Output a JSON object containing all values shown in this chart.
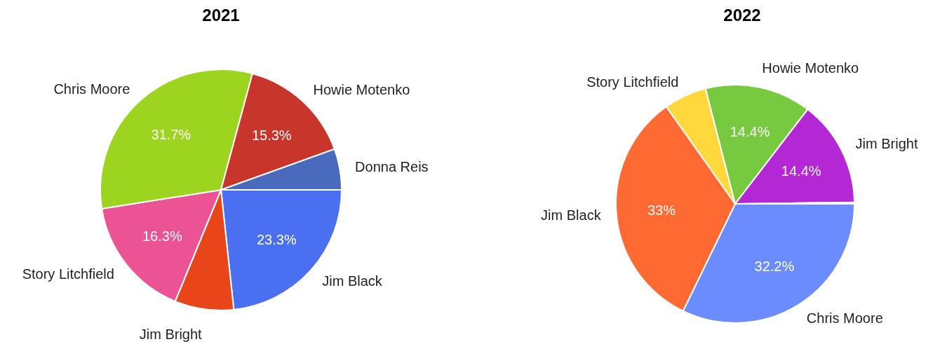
{
  "chart_data": [
    {
      "type": "pie",
      "title": "2021",
      "categories": [
        "Jim Black",
        "Jim Bright",
        "Story Litchfield",
        "Chris Moore",
        "Howie Motenko",
        "Donna Reis"
      ],
      "values": [
        23.3,
        7.9,
        16.3,
        31.7,
        15.3,
        5.5
      ],
      "colors": [
        "#4a6ff0",
        "#e8461a",
        "#ec5395",
        "#9dd41f",
        "#c8352b",
        "#4a6bbd"
      ],
      "value_labels": [
        "23.3%",
        null,
        "16.3%",
        "31.7%",
        "15.3%",
        null
      ]
    },
    {
      "type": "pie",
      "title": "2022",
      "categories": [
        "Chris Moore",
        "Jim Black",
        "Story Litchfield",
        "Howie Motenko",
        "Jim Bright",
        null
      ],
      "values": [
        32.2,
        33,
        5.8,
        14.4,
        14.4,
        0.2
      ],
      "colors": [
        "#6b8cff",
        "#ff6a33",
        "#ffd83d",
        "#77c940",
        "#b327d4",
        "#6fc6e8"
      ],
      "value_labels": [
        "32.2%",
        "33%",
        null,
        "14.4%",
        "14.4%",
        null
      ]
    }
  ]
}
